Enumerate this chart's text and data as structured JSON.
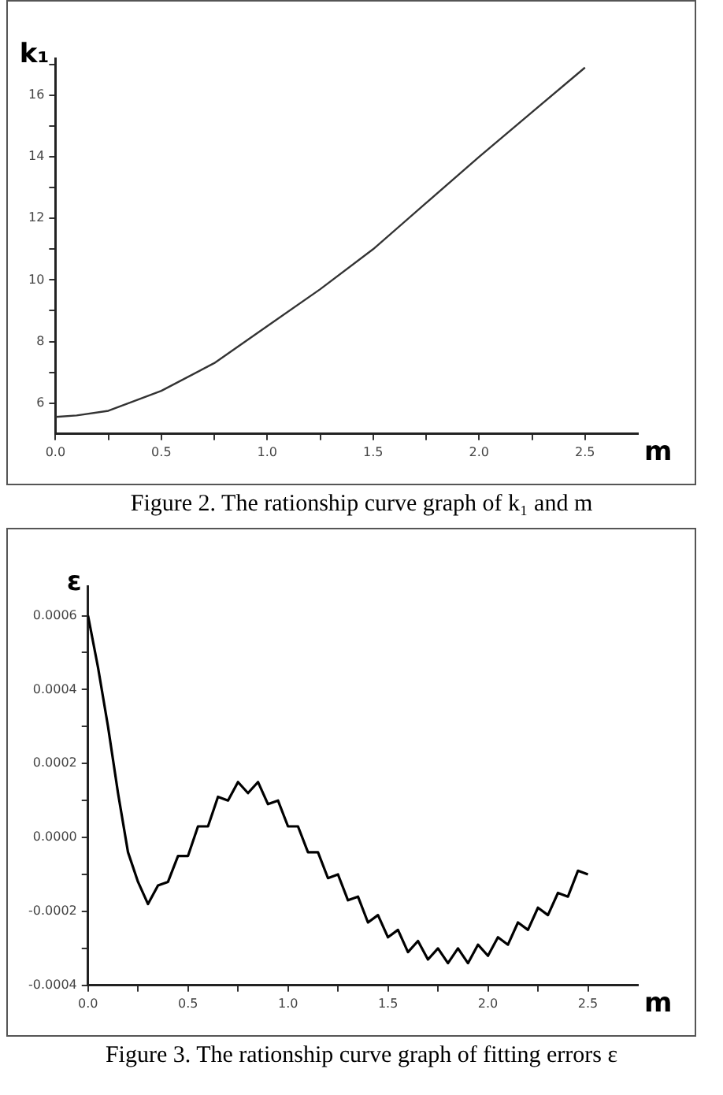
{
  "chart_data": [
    {
      "type": "line",
      "xlabel": "m",
      "ylabel": "k₁",
      "annotations": [
        "Figure 2.  The rationship curve graph of k₁ and m"
      ],
      "xlim": [
        0,
        2.75
      ],
      "ylim": [
        5,
        17.2
      ],
      "xticks": [
        {
          "value": 0,
          "label": "0.0"
        },
        {
          "value": 0.25,
          "label": null
        },
        {
          "value": 0.5,
          "label": "0.5"
        },
        {
          "value": 0.75,
          "label": null
        },
        {
          "value": 1,
          "label": "1.0"
        },
        {
          "value": 1.25,
          "label": null
        },
        {
          "value": 1.5,
          "label": "1.5"
        },
        {
          "value": 1.75,
          "label": null
        },
        {
          "value": 2,
          "label": "2.0"
        },
        {
          "value": 2.25,
          "label": null
        },
        {
          "value": 2.5,
          "label": "2.5"
        }
      ],
      "yticks": [
        6,
        {
          "value": 7,
          "label": null
        },
        8,
        {
          "value": 9,
          "label": null
        },
        10,
        {
          "value": 11,
          "label": null
        },
        12,
        {
          "value": 13,
          "label": null
        },
        14,
        {
          "value": 15,
          "label": null
        },
        16,
        {
          "value": 17,
          "label": null
        }
      ],
      "x": [
        0,
        0.1,
        0.25,
        0.5,
        0.75,
        1.0,
        1.25,
        1.5,
        1.75,
        2.0,
        2.25,
        2.5
      ],
      "series": [
        {
          "color": "#333333",
          "values": [
            5.55,
            5.6,
            5.75,
            6.4,
            7.3,
            8.5,
            9.7,
            11.0,
            12.5,
            14.0,
            15.45,
            16.9
          ]
        }
      ]
    },
    {
      "type": "line",
      "xlabel": "m",
      "ylabel": "ε",
      "annotations": [
        "Figure 3.  The rationship curve graph of fitting errors ε"
      ],
      "xlim": [
        0,
        2.75
      ],
      "ylim": [
        -0.0004,
        0.00068
      ],
      "xticks": [
        {
          "value": 0,
          "label": "0.0"
        },
        {
          "value": 0.25,
          "label": null
        },
        {
          "value": 0.5,
          "label": "0.5"
        },
        {
          "value": 0.75,
          "label": null
        },
        {
          "value": 1,
          "label": "1.0"
        },
        {
          "value": 1.25,
          "label": null
        },
        {
          "value": 1.5,
          "label": "1.5"
        },
        {
          "value": 1.75,
          "label": null
        },
        {
          "value": 2,
          "label": "2.0"
        },
        {
          "value": 2.25,
          "label": null
        },
        {
          "value": 2.5,
          "label": "2.5"
        }
      ],
      "yticks": [
        {
          "value": -0.0004,
          "label": "-0.0004"
        },
        {
          "value": -0.0003,
          "label": null
        },
        {
          "value": -0.0002,
          "label": "-0.0002"
        },
        {
          "value": -0.0001,
          "label": null
        },
        {
          "value": 0,
          "label": "0.0000"
        },
        {
          "value": 0.0001,
          "label": null
        },
        {
          "value": 0.0002,
          "label": "0.0002"
        },
        {
          "value": 0.0003,
          "label": null
        },
        {
          "value": 0.0004,
          "label": "0.0004"
        },
        {
          "value": 0.0005,
          "label": null
        },
        {
          "value": 0.0006,
          "label": "0.0006"
        }
      ],
      "x": [
        0,
        0.05,
        0.1,
        0.15,
        0.2,
        0.25,
        0.3,
        0.35,
        0.4,
        0.45,
        0.5,
        0.55,
        0.6,
        0.65,
        0.7,
        0.75,
        0.8,
        0.85,
        0.9,
        0.95,
        1.0,
        1.05,
        1.1,
        1.15,
        1.2,
        1.25,
        1.3,
        1.35,
        1.4,
        1.45,
        1.5,
        1.55,
        1.6,
        1.65,
        1.7,
        1.75,
        1.8,
        1.85,
        1.9,
        1.95,
        2.0,
        2.05,
        2.1,
        2.15,
        2.2,
        2.25,
        2.3,
        2.35,
        2.4,
        2.45,
        2.5
      ],
      "series": [
        {
          "color": "#000000",
          "values": [
            0.0006,
            0.00046,
            0.0003,
            0.00012,
            -4e-05,
            -0.00012,
            -0.00018,
            -0.00013,
            -0.00012,
            -5e-05,
            -5e-05,
            3e-05,
            3e-05,
            0.00011,
            0.0001,
            0.00015,
            0.00012,
            0.00015,
            9e-05,
            0.0001,
            3e-05,
            3e-05,
            -4e-05,
            -4e-05,
            -0.00011,
            -0.0001,
            -0.00017,
            -0.00016,
            -0.00023,
            -0.00021,
            -0.00027,
            -0.00025,
            -0.00031,
            -0.00028,
            -0.00033,
            -0.0003,
            -0.00034,
            -0.0003,
            -0.00034,
            -0.00029,
            -0.00032,
            -0.00027,
            -0.00029,
            -0.00023,
            -0.00025,
            -0.00019,
            -0.00021,
            -0.00015,
            -0.00016,
            -9e-05,
            -0.0001
          ]
        }
      ]
    }
  ]
}
